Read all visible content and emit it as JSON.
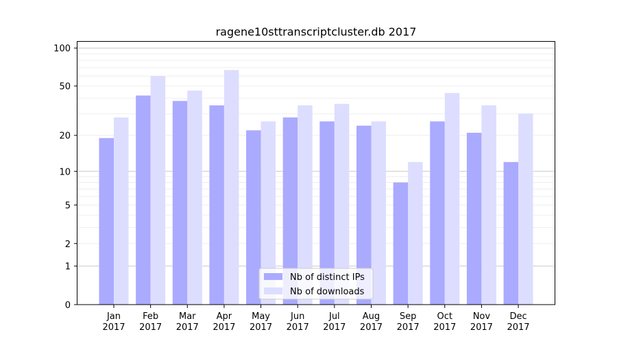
{
  "chart_data": {
    "type": "bar",
    "title": "ragene10sttranscriptcluster.db 2017",
    "xlabel": "",
    "ylabel": "",
    "yscale": "log10(1+y)",
    "ylim": [
      0,
      114
    ],
    "yticks": [
      0,
      1,
      2,
      5,
      10,
      20,
      50,
      100
    ],
    "grid": true,
    "legend_position": "lower-center",
    "categories": [
      "Jan\n2017",
      "Feb\n2017",
      "Mar\n2017",
      "Apr\n2017",
      "May\n2017",
      "Jun\n2017",
      "Jul\n2017",
      "Aug\n2017",
      "Sep\n2017",
      "Oct\n2017",
      "Nov\n2017",
      "Dec\n2017"
    ],
    "series": [
      {
        "name": "Nb of distinct IPs",
        "color": "#aaaaff",
        "values": [
          19,
          42,
          38,
          35,
          22,
          28,
          26,
          24,
          8,
          26,
          21,
          12
        ]
      },
      {
        "name": "Nb of downloads",
        "color": "#ddddff",
        "values": [
          28,
          60,
          46,
          67,
          26,
          35,
          36,
          26,
          12,
          44,
          35,
          30
        ]
      }
    ]
  }
}
